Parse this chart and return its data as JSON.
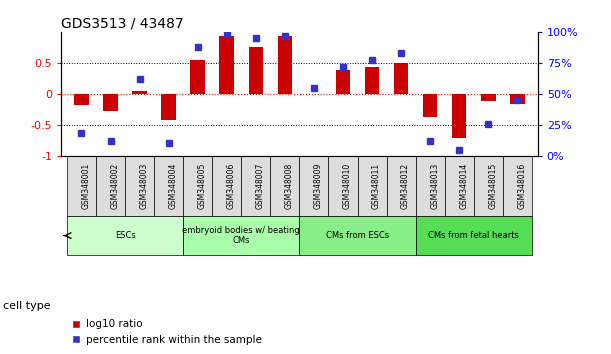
{
  "title": "GDS3513 / 43487",
  "samples": [
    "GSM348001",
    "GSM348002",
    "GSM348003",
    "GSM348004",
    "GSM348005",
    "GSM348006",
    "GSM348007",
    "GSM348008",
    "GSM348009",
    "GSM348010",
    "GSM348011",
    "GSM348012",
    "GSM348013",
    "GSM348014",
    "GSM348015",
    "GSM348016"
  ],
  "log10_ratio": [
    -0.18,
    -0.28,
    0.05,
    -0.42,
    0.55,
    0.93,
    0.75,
    0.93,
    0.0,
    0.38,
    0.44,
    0.5,
    -0.38,
    -0.72,
    -0.12,
    -0.17
  ],
  "percentile": [
    18,
    12,
    62,
    10,
    88,
    98,
    95,
    97,
    55,
    72,
    77,
    83,
    12,
    5,
    26,
    45
  ],
  "bar_color": "#cc0000",
  "dot_color": "#3333cc",
  "cell_types": [
    {
      "label": "ESCs",
      "start": 0,
      "end": 3,
      "color": "#ccffcc"
    },
    {
      "label": "embryoid bodies w/ beating\nCMs",
      "start": 4,
      "end": 7,
      "color": "#aaffaa"
    },
    {
      "label": "CMs from ESCs",
      "start": 8,
      "end": 11,
      "color": "#88ee88"
    },
    {
      "label": "CMs from fetal hearts",
      "start": 12,
      "end": 15,
      "color": "#55dd55"
    }
  ],
  "ylim_left": [
    -1.0,
    1.0
  ],
  "yticks_left": [
    -1.0,
    -0.5,
    0.0,
    0.5
  ],
  "ytick_labels_left": [
    "-1",
    "-0.5",
    "0",
    "0.5"
  ],
  "ylim_right": [
    0,
    100
  ],
  "yticks_right": [
    0,
    25,
    50,
    75,
    100
  ],
  "ytick_labels_right": [
    "0%",
    "25%",
    "50%",
    "75%",
    "100%"
  ],
  "legend_items": [
    {
      "label": "log10 ratio",
      "color": "#cc0000"
    },
    {
      "label": "percentile rank within the sample",
      "color": "#3333cc"
    }
  ]
}
